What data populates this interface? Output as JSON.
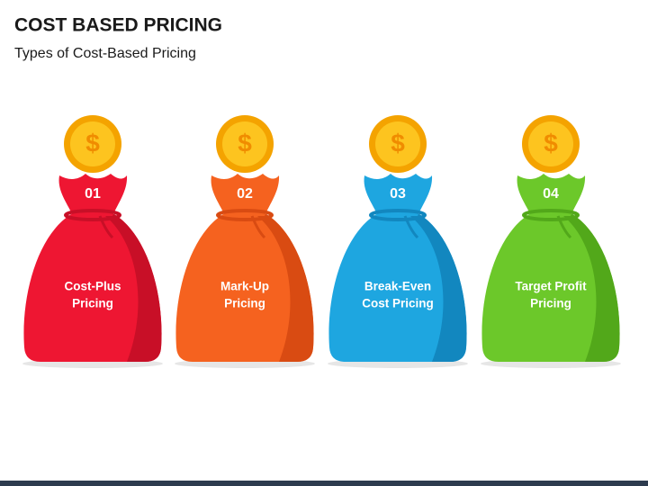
{
  "header": {
    "title": "COST BASED PRICING",
    "subtitle": "Types of Cost-Based Pricing"
  },
  "coin_symbol": "$",
  "items": [
    {
      "number": "01",
      "label": [
        "Cost-Plus",
        "Pricing"
      ],
      "color": "#ee1632",
      "shade": "#c80f27"
    },
    {
      "number": "02",
      "label": [
        "Mark-Up",
        "Pricing"
      ],
      "color": "#f5621f",
      "shade": "#d94b12"
    },
    {
      "number": "03",
      "label": [
        "Break-Even",
        "Cost Pricing"
      ],
      "color": "#1ea6e0",
      "shade": "#1287bf"
    },
    {
      "number": "04",
      "label": [
        "Target Profit",
        "Pricing"
      ],
      "color": "#6cc82a",
      "shade": "#52a81a"
    }
  ]
}
